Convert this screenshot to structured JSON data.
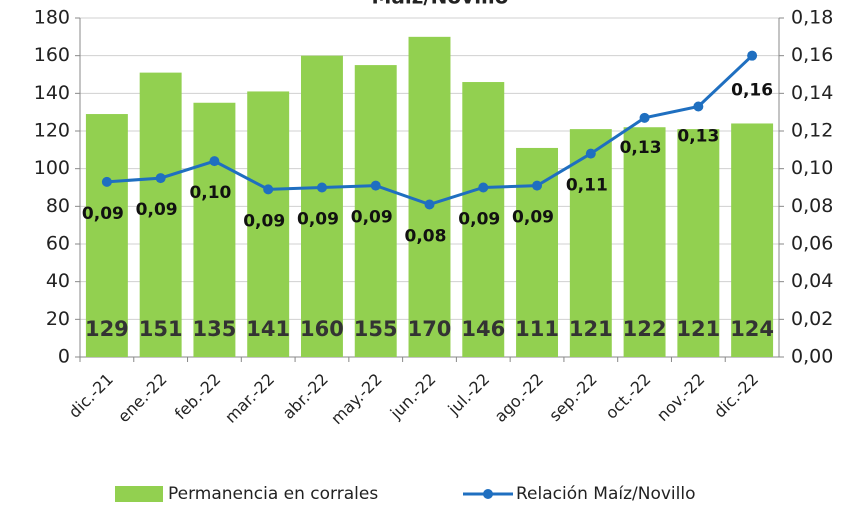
{
  "chart_data": {
    "type": "bar",
    "title": "Maíz/Novillo",
    "categories": [
      "dic.-21",
      "ene.-22",
      "feb.-22",
      "mar.-22",
      "abr.-22",
      "may.-22",
      "jun.-22",
      "jul.-22",
      "ago.-22",
      "sep.-22",
      "oct.-22",
      "nov.-22",
      "dic.-22"
    ],
    "series": [
      {
        "name": "Permanencia en corrales",
        "type": "bar",
        "color": "#92d050",
        "values": [
          129,
          151,
          135,
          141,
          160,
          155,
          170,
          146,
          111,
          121,
          122,
          121,
          124
        ]
      },
      {
        "name": "Relación Maíz/Novillo",
        "type": "line",
        "axis": "y2",
        "color": "#1f6fc0",
        "values": [
          0.093,
          0.095,
          0.104,
          0.089,
          0.09,
          0.091,
          0.081,
          0.09,
          0.091,
          0.108,
          0.127,
          0.133,
          0.16
        ],
        "value_labels": [
          "0,09",
          "0,09",
          "0,10",
          "0,09",
          "0,09",
          "0,09",
          "0,08",
          "0,09",
          "0,09",
          "0,11",
          "0,13",
          "0,13",
          "0,16"
        ]
      }
    ],
    "ylim": [
      0,
      180
    ],
    "yticks": [
      0,
      20,
      40,
      60,
      80,
      100,
      120,
      140,
      160,
      180
    ],
    "y2lim": [
      0,
      0.18
    ],
    "y2ticks": [
      {
        "value": 0,
        "label": "0,00"
      },
      {
        "value": 0.02,
        "label": "0,02"
      },
      {
        "value": 0.04,
        "label": "0,04"
      },
      {
        "value": 0.06,
        "label": "0,06"
      },
      {
        "value": 0.08,
        "label": "0,08"
      },
      {
        "value": 0.1,
        "label": "0,10"
      },
      {
        "value": 0.12,
        "label": "0,12"
      },
      {
        "value": 0.14,
        "label": "0,14"
      },
      {
        "value": 0.16,
        "label": "0,16"
      },
      {
        "value": 0.18,
        "label": "0,18"
      }
    ],
    "grid": true,
    "legend": "bottom"
  }
}
